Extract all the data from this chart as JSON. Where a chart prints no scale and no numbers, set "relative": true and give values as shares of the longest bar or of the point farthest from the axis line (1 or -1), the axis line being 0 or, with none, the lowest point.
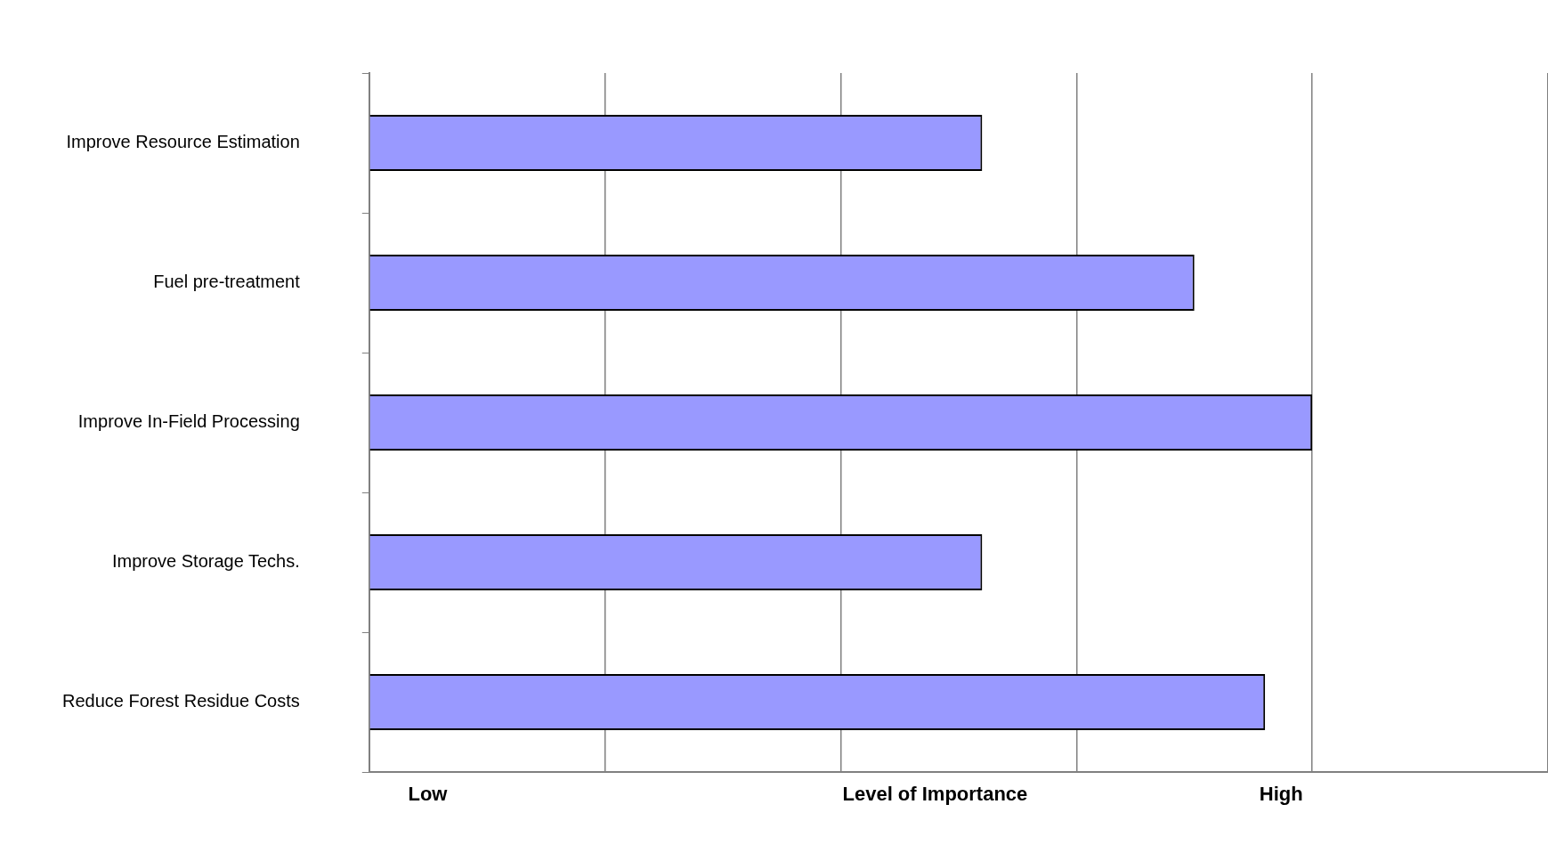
{
  "chart_data": {
    "type": "bar",
    "orientation": "horizontal",
    "relative": true,
    "xlabel": "Level of Importance",
    "categories": [
      "Improve Resource Estimation",
      "Fuel pre-treatment",
      "Improve In-Field Processing",
      "Improve Storage Techs.",
      "Reduce Forest Residue Costs"
    ],
    "values": [
      0.65,
      0.875,
      1,
      0.65,
      0.95
    ],
    "color": "#9999ff",
    "grid": "x",
    "legend": false,
    "annotations": [
      "Low",
      "High"
    ]
  }
}
